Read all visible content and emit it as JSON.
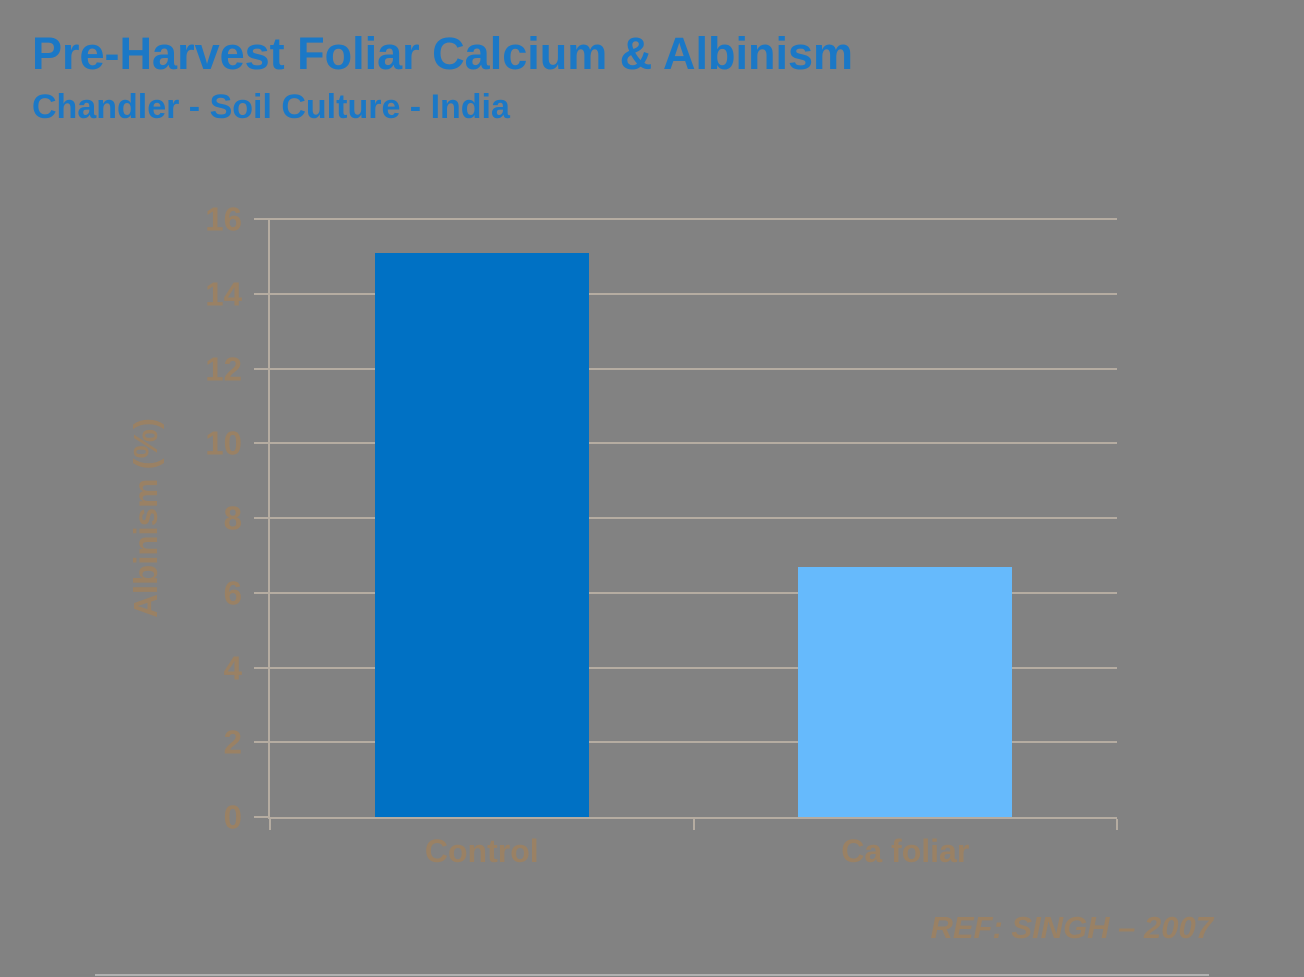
{
  "title": "Pre-Harvest Foliar Calcium & Albinism",
  "subtitle": "Chandler - Soil Culture - India",
  "reference": "REF: SINGH – 2007",
  "colors": {
    "background": "#828282",
    "title_text": "#1B78C6",
    "axis_text": "#9A8164",
    "grid_axis_line": "#B5ACA1",
    "bar_control": "#0071C4",
    "bar_ca_foliar": "#66BAFC"
  },
  "chart_data": {
    "type": "bar",
    "categories": [
      "Control",
      "Ca foliar"
    ],
    "values": [
      15.1,
      6.7
    ],
    "bar_colors": [
      "#0071C4",
      "#66BAFC"
    ],
    "title": "Pre-Harvest Foliar Calcium & Albinism",
    "subtitle": "Chandler - Soil Culture - India",
    "xlabel": "",
    "ylabel": "Albinism (%)",
    "ylim": [
      0,
      16
    ],
    "ytick_step": 2,
    "ytick_labels": [
      "0",
      "2",
      "4",
      "6",
      "8",
      "10",
      "12",
      "14",
      "16"
    ],
    "grid": true,
    "legend": false,
    "annotation": "REF: SINGH – 2007",
    "bar_width_fraction": 0.505
  }
}
